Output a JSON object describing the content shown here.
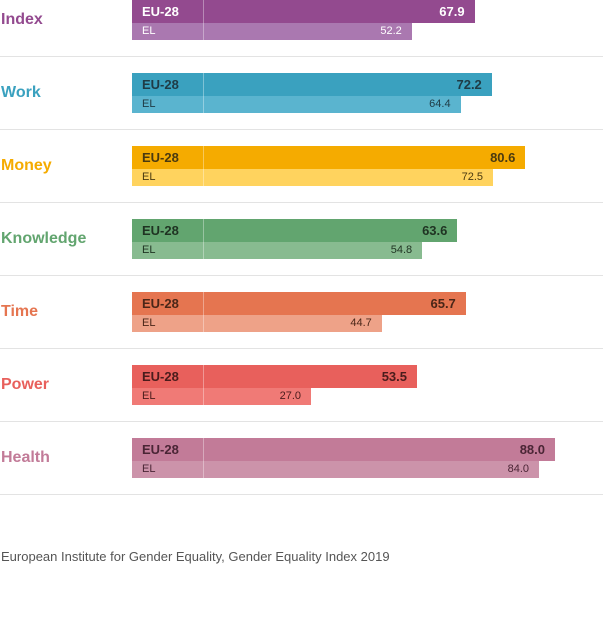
{
  "chart_data": {
    "type": "bar",
    "orientation": "horizontal",
    "title": "",
    "xlabel": "",
    "ylabel": "",
    "xlim": [
      0,
      100
    ],
    "grid": false,
    "categories": [
      "Index",
      "Work",
      "Money",
      "Knowledge",
      "Time",
      "Power",
      "Health"
    ],
    "series": [
      {
        "name": "EU-28",
        "values": [
          67.9,
          72.2,
          80.6,
          63.6,
          65.7,
          53.5,
          88.0
        ]
      },
      {
        "name": "EL",
        "values": [
          52.2,
          64.4,
          72.5,
          54.8,
          44.7,
          27.0,
          84.0
        ]
      }
    ],
    "colors": [
      {
        "label": "#934a8f",
        "eu": "#934a8f",
        "el": "#aa78b0",
        "text": "#ffffff"
      },
      {
        "label": "#3aa1bf",
        "eu": "#3aa1bf",
        "el": "#5ab4cf",
        "text": "#1f3b45"
      },
      {
        "label": "#f5ab00",
        "eu": "#f5ab00",
        "el": "#ffd35e",
        "text": "#4a3a10"
      },
      {
        "label": "#62a56f",
        "eu": "#62a56f",
        "el": "#88bb90",
        "text": "#1f3322"
      },
      {
        "label": "#e57550",
        "eu": "#e57550",
        "el": "#eea288",
        "text": "#4a2618"
      },
      {
        "label": "#e8605c",
        "eu": "#e8605c",
        "el": "#f07a76",
        "text": "#4a1c1c"
      },
      {
        "label": "#c27b98",
        "eu": "#c27b98",
        "el": "#cc93aa",
        "text": "#4a2535"
      }
    ],
    "row_labels": {
      "eu": "EU-28",
      "el": "EL"
    },
    "value_labels": {
      "eu": [
        "67.9",
        "72.2",
        "80.6",
        "63.6",
        "65.7",
        "53.5",
        "88.0"
      ],
      "el": [
        "52.2",
        "64.4",
        "72.5",
        "54.8",
        "44.7",
        "27.0",
        "84.0"
      ]
    }
  },
  "source": "European Institute for Gender Equality, Gender Equality Index 2019"
}
